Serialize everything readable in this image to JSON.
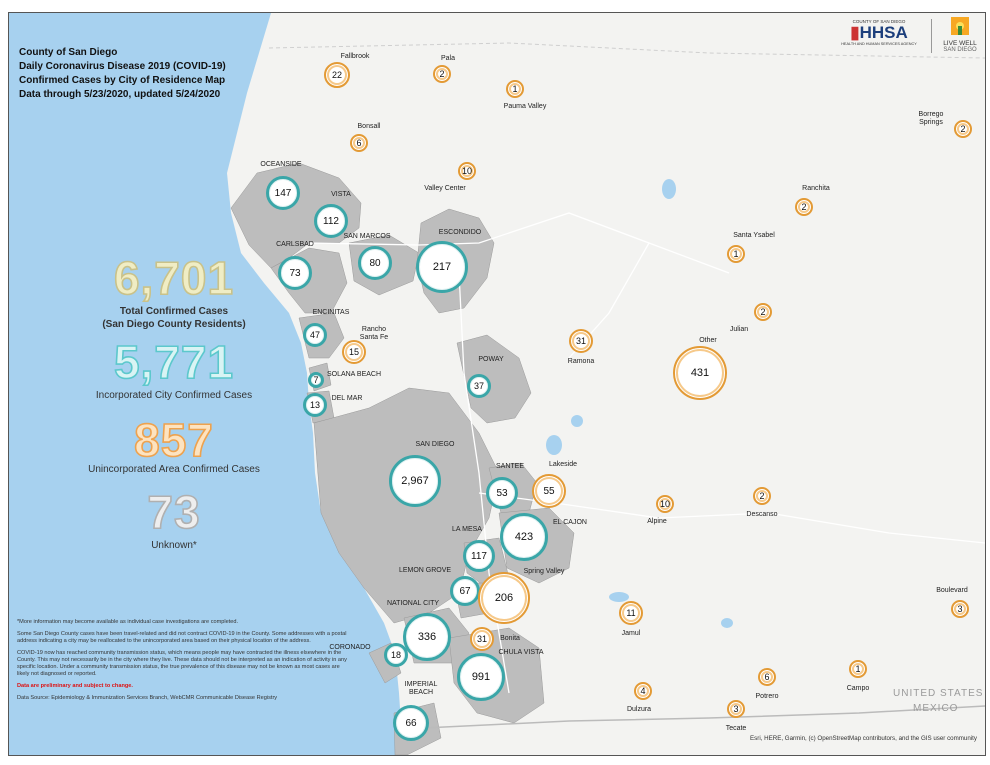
{
  "title": {
    "line1": "County of San Diego",
    "line2": "Daily Coronavirus Disease 2019 (COVID-19)",
    "line3": "Confirmed Cases by City of Residence Map",
    "line4": "Data through 5/23/2020, updated 5/24/2020"
  },
  "stats": {
    "total": "6,701",
    "total_label_1": "Total Confirmed Cases",
    "total_label_2": "(San Diego County Residents)",
    "incorporated": "5,771",
    "incorporated_label": "Incorporated City Confirmed Cases",
    "unincorporated": "857",
    "unincorporated_label": "Unincorporated Area Confirmed Cases",
    "unknown": "73",
    "unknown_label": "Unknown*"
  },
  "colors": {
    "total": "#e7e2a4",
    "incorporated": "#7cd6d6",
    "unincorporated": "#f4b06a",
    "unknown": "#c4c4c4",
    "city_ring": "#3aa6a8",
    "unin_ring": "#e39a35",
    "ocean": "#a7d1ef",
    "city_area": "#bdbdbd"
  },
  "bubbles": [
    {
      "name": "Oceanside",
      "label": "OCEANSIDE",
      "value": "147",
      "type": "city"
    },
    {
      "name": "Vista",
      "label": "VISTA",
      "value": "112",
      "type": "city"
    },
    {
      "name": "Carlsbad",
      "label": "CARLSBAD",
      "value": "73",
      "type": "city"
    },
    {
      "name": "San Marcos",
      "label": "SAN MARCOS",
      "value": "80",
      "type": "city"
    },
    {
      "name": "Escondido",
      "label": "ESCONDIDO",
      "value": "217",
      "type": "city"
    },
    {
      "name": "Encinitas",
      "label": "ENCINITAS",
      "value": "47",
      "type": "city"
    },
    {
      "name": "Solana Beach",
      "label": "SOLANA BEACH",
      "value": "7",
      "type": "city"
    },
    {
      "name": "Del Mar",
      "label": "DEL MAR",
      "value": "13",
      "type": "city"
    },
    {
      "name": "Poway",
      "label": "POWAY",
      "value": "37",
      "type": "city"
    },
    {
      "name": "San Diego",
      "label": "SAN DIEGO",
      "value": "2,967",
      "type": "city"
    },
    {
      "name": "Santee",
      "label": "SANTEE",
      "value": "53",
      "type": "city"
    },
    {
      "name": "El Cajon",
      "label": "EL CAJON",
      "value": "423",
      "type": "city"
    },
    {
      "name": "La Mesa",
      "label": "LA MESA",
      "value": "117",
      "type": "city"
    },
    {
      "name": "Lemon Grove",
      "label": "LEMON GROVE",
      "value": "67",
      "type": "city"
    },
    {
      "name": "National City",
      "label": "NATIONAL CITY",
      "value": "336",
      "type": "city"
    },
    {
      "name": "Coronado",
      "label": "CORONADO",
      "value": "18",
      "type": "city"
    },
    {
      "name": "Chula Vista",
      "label": "CHULA VISTA",
      "value": "991",
      "type": "city"
    },
    {
      "name": "Imperial Beach",
      "label": "IMPERIAL\nBEACH",
      "value": "66",
      "type": "city"
    },
    {
      "name": "Fallbrook",
      "label": "Fallbrook",
      "value": "22",
      "type": "unin"
    },
    {
      "name": "Pala",
      "label": "Pala",
      "value": "2",
      "type": "unin"
    },
    {
      "name": "Pauma Valley",
      "label": "Pauma Valley",
      "value": "1",
      "type": "unin"
    },
    {
      "name": "Bonsall",
      "label": "Bonsall",
      "value": "6",
      "type": "unin"
    },
    {
      "name": "Valley Center",
      "label": "Valley Center",
      "value": "10",
      "type": "unin"
    },
    {
      "name": "Borrego Springs",
      "label": "Borrego\nSprings",
      "value": "2",
      "type": "unin"
    },
    {
      "name": "Ranchita",
      "label": "Ranchita",
      "value": "2",
      "type": "unin"
    },
    {
      "name": "Santa Ysabel",
      "label": "Santa Ysabel",
      "value": "1",
      "type": "unin"
    },
    {
      "name": "Julian",
      "label": "Julian",
      "value": "2",
      "type": "unin"
    },
    {
      "name": "Other",
      "label": "Other",
      "value": "431",
      "type": "unin"
    },
    {
      "name": "Ramona",
      "label": "Ramona",
      "value": "31",
      "type": "unin"
    },
    {
      "name": "Rancho Santa Fe",
      "label": "Rancho\nSanta Fe",
      "value": "15",
      "type": "unin"
    },
    {
      "name": "Lakeside",
      "label": "Lakeside",
      "value": "55",
      "type": "unin"
    },
    {
      "name": "Alpine",
      "label": "Alpine",
      "value": "10",
      "type": "unin"
    },
    {
      "name": "Descanso",
      "label": "Descanso",
      "value": "2",
      "type": "unin"
    },
    {
      "name": "Spring Valley",
      "label": "Spring Valley",
      "value": "206",
      "type": "unin"
    },
    {
      "name": "Bonita",
      "label": "Bonita",
      "value": "31",
      "type": "unin"
    },
    {
      "name": "Jamul",
      "label": "Jamul",
      "value": "11",
      "type": "unin"
    },
    {
      "name": "Boulevard",
      "label": "Boulevard",
      "value": "3",
      "type": "unin"
    },
    {
      "name": "Dulzura",
      "label": "Dulzura",
      "value": "4",
      "type": "unin"
    },
    {
      "name": "Potrero",
      "label": "Potrero",
      "value": "6",
      "type": "unin"
    },
    {
      "name": "Campo",
      "label": "Campo",
      "value": "1",
      "type": "unin"
    },
    {
      "name": "Tecate",
      "label": "Tecate",
      "value": "3",
      "type": "unin"
    }
  ],
  "notes": {
    "n1": "*More information may become available as individual case investigations are completed.",
    "n2": "Some San Diego County cases have been travel-related and did not contract COVID-19 in the County. Some addresses with a postal address indicating a city may be reallocated to the unincorporated area based on their physical location of the address.",
    "n3": "COVID-19 now has reached community transmission status, which means people may have contracted the illness elsewhere in the County. This may not necessarily be in the city where they live. These data should not be interpreted as an indication of activity in any specific location. Under a community transmission status, the true prevalence of this disease may not be known as most cases are likely not diagnosed or reported.",
    "prelim": "Data are preliminary and subject to change.",
    "source": "Data Source: Epidemiology & Immunization Services Branch, WebCMR Communicable Disease Registry"
  },
  "map_text": {
    "us": "UNITED STATES",
    "mexico": "MEXICO",
    "attribution": "Esri, HERE, Garmin, (c) OpenStreetMap contributors, and the GIS user community"
  },
  "logos": {
    "hhsa_small": "COUNTY OF SAN DIEGO",
    "hhsa": "HHSA",
    "hhsa_sub": "HEALTH AND HUMAN SERVICES AGENCY",
    "lw1": "LIVE WELL",
    "lw2": "SAN DIEGO"
  }
}
